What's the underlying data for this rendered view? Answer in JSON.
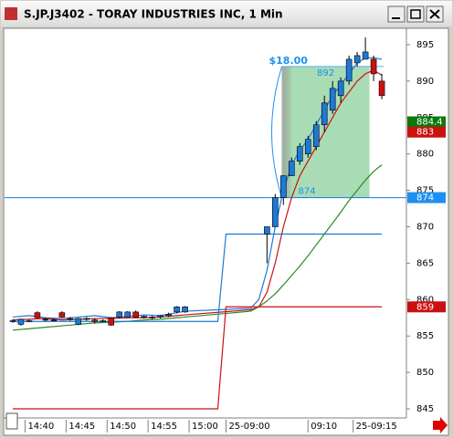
{
  "window": {
    "title": "S.JP.J3402 - TORAY INDUSTRIES INC, 1 Min"
  },
  "chart_data": {
    "type": "candlestick",
    "ylim": [
      843.75,
      897.125
    ],
    "yticks": [
      845,
      850,
      855,
      860,
      865,
      870,
      875,
      880,
      885,
      890,
      895
    ],
    "xlim": [
      -3,
      46
    ],
    "xticks": [
      {
        "value": -0.5,
        "label": "14:40"
      },
      {
        "value": 4.5,
        "label": "14:45"
      },
      {
        "value": 9.5,
        "label": "14:50"
      },
      {
        "value": 14.5,
        "label": "14:55"
      },
      {
        "value": 19.5,
        "label": "15:00"
      },
      {
        "value": 24,
        "label": "25-09:00"
      },
      {
        "value": 34,
        "label": "09:10"
      },
      {
        "value": 39.5,
        "label": "25-09:15"
      }
    ],
    "up_color": "#1e78d8",
    "down_color": "#cc1010",
    "candles": {
      "x": [
        -2,
        -1,
        0,
        1,
        2,
        3,
        4,
        5,
        6,
        7,
        8,
        9,
        10,
        11,
        12,
        13,
        14,
        15,
        16,
        17,
        18,
        19,
        29,
        30,
        31,
        32,
        33,
        34,
        35,
        36,
        37,
        38,
        39,
        40,
        41,
        42,
        43
      ],
      "open": [
        857,
        856.6,
        857.1,
        858.2,
        857.3,
        857.2,
        858.2,
        857.3,
        856.6,
        857.3,
        857.2,
        857.1,
        857.5,
        857.6,
        857.6,
        858.3,
        857.6,
        857.6,
        857.6,
        857.8,
        858.3,
        858.3,
        869,
        870,
        874,
        877,
        879,
        880,
        881,
        884,
        886,
        888,
        890,
        892.5,
        893,
        893,
        890
      ],
      "high": [
        857.3,
        857.4,
        857.3,
        858.4,
        857.5,
        857.4,
        858.4,
        857.6,
        857.5,
        857.6,
        857.4,
        857.3,
        857.6,
        858.4,
        858.4,
        858.5,
        857.8,
        857.8,
        857.9,
        858.2,
        859.1,
        859.1,
        870,
        874.5,
        877,
        879.5,
        881.5,
        882.5,
        884.5,
        888,
        890,
        890.5,
        893.5,
        894,
        896,
        893.5,
        891
      ],
      "low": [
        856.8,
        856.4,
        856.9,
        857.4,
        857,
        857,
        857.5,
        857.1,
        856.5,
        857.1,
        856.7,
        856.9,
        856.4,
        857.4,
        857.5,
        857.5,
        857.4,
        857.3,
        857.4,
        857.6,
        858.1,
        858.2,
        865,
        870,
        873,
        877,
        878.5,
        879.5,
        880.5,
        883,
        885.5,
        887,
        889.5,
        892,
        893,
        890,
        887.5
      ],
      "close": [
        857.1,
        857.3,
        857.1,
        857.5,
        857.2,
        857.1,
        857.6,
        857.4,
        857.4,
        857.4,
        857,
        857.1,
        856.5,
        858.3,
        858.3,
        857.6,
        857.7,
        857.5,
        857.8,
        858,
        859,
        859,
        870,
        874,
        877,
        879,
        881,
        882,
        884,
        887,
        889,
        890,
        893,
        893.5,
        894,
        891,
        888
      ]
    },
    "lines": [
      {
        "color": "#1e78d8",
        "x": [
          -2,
          0,
          2,
          4,
          6,
          8,
          10,
          12,
          14,
          16,
          18,
          19,
          27,
          28,
          29,
          30,
          31,
          32,
          33,
          34,
          35,
          36,
          37,
          38,
          39,
          40,
          41,
          42,
          43
        ],
        "values": [
          857.6,
          857.8,
          857.5,
          857.4,
          857.6,
          857.8,
          857.5,
          857.7,
          857.9,
          857.8,
          858.2,
          858.4,
          858.8,
          860,
          864,
          870,
          875,
          878.5,
          880.5,
          882,
          884,
          886,
          888,
          889.5,
          891,
          892.5,
          893.2,
          893.2,
          893
        ]
      },
      {
        "color": "#cc1010",
        "x": [
          -2,
          0,
          2,
          4,
          6,
          8,
          10,
          12,
          14,
          16,
          18,
          19,
          27,
          28,
          29,
          30,
          31,
          32,
          33,
          34,
          35,
          36,
          37,
          38,
          39,
          40,
          41,
          42,
          43
        ],
        "values": [
          857.2,
          857.3,
          857.4,
          857.2,
          857.3,
          857.4,
          857.4,
          857.5,
          857.5,
          857.6,
          857.8,
          857.9,
          858.6,
          859,
          861,
          865,
          870,
          874,
          877,
          879,
          881,
          883,
          885,
          887,
          888.5,
          890,
          891,
          891.5,
          890.8
        ]
      },
      {
        "color": "#2a8a2a",
        "x": [
          -2,
          0,
          2,
          4,
          6,
          8,
          10,
          12,
          14,
          16,
          18,
          19,
          27,
          28,
          29,
          30,
          31,
          32,
          33,
          34,
          35,
          36,
          37,
          38,
          39,
          40,
          41,
          42,
          43
        ],
        "values": [
          855.8,
          856,
          856.2,
          856.4,
          856.6,
          856.8,
          856.9,
          857,
          857.2,
          857.3,
          857.5,
          857.6,
          858.4,
          859,
          859.8,
          860.8,
          862,
          863.3,
          864.6,
          866,
          867.5,
          869,
          870.5,
          872,
          873.6,
          875,
          876.4,
          877.6,
          878.5
        ]
      },
      {
        "color": "#1e78d8",
        "x": [
          -2,
          23,
          24,
          43
        ],
        "values": [
          857,
          857,
          869,
          869
        ]
      },
      {
        "color": "#cc1010",
        "x": [
          -2,
          23,
          24,
          43
        ],
        "values": [
          845,
          845,
          859,
          859
        ]
      }
    ],
    "hlines": [
      {
        "value": 874,
        "color": "#1e78d8"
      }
    ],
    "annotation": {
      "change": {
        "value": 18,
        "label": "$18.00"
      },
      "high": 892,
      "low": 874,
      "x_start": 30.8,
      "x_end": 41.5
    },
    "price_markers": [
      {
        "value": 884.4,
        "color": "#0a7a0a"
      },
      {
        "value": 883,
        "color": "#cc1010"
      },
      {
        "value": 874,
        "color": "#1e8ff0"
      },
      {
        "value": 859,
        "color": "#cc1010"
      }
    ]
  }
}
